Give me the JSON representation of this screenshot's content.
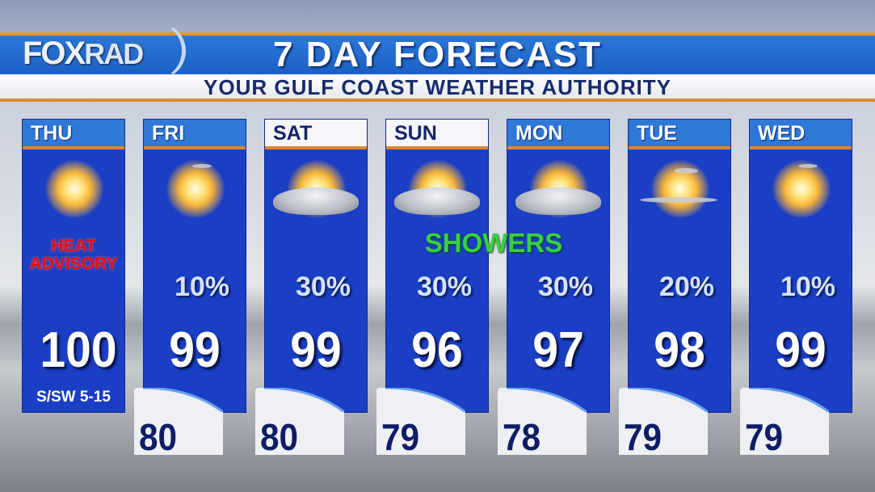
{
  "header": {
    "logo": "FOXRAD",
    "title": "7 DAY FORECAST",
    "subtitle": "YOUR GULF COAST WEATHER AUTHORITY"
  },
  "showers_label": "SHOWERS",
  "days": [
    {
      "day": "THU",
      "icon": "sunny",
      "note_line1": "HEAT",
      "note_line2": "ADVISORY",
      "high": "100",
      "wind": "S/SW 5-15"
    },
    {
      "day": "FRI",
      "icon": "sunny",
      "pop": "10%",
      "high": "99",
      "low": "80"
    },
    {
      "day": "SAT",
      "icon": "partly-cloudy",
      "pop": "30%",
      "high": "99",
      "low": "80"
    },
    {
      "day": "SUN",
      "icon": "partly-cloudy",
      "pop": "30%",
      "high": "96",
      "low": "79"
    },
    {
      "day": "MON",
      "icon": "partly-cloudy",
      "pop": "30%",
      "high": "97",
      "low": "78"
    },
    {
      "day": "TUE",
      "icon": "mostly-sunny",
      "pop": "20%",
      "high": "98",
      "low": "79"
    },
    {
      "day": "WED",
      "icon": "sunny",
      "pop": "10%",
      "high": "99",
      "low": "79"
    }
  ],
  "colors": {
    "card": "#1a3fc4",
    "tab": "#2f78d8",
    "accent": "#e2852a",
    "heat_advisory": "#e0101a",
    "showers": "#38d040"
  }
}
